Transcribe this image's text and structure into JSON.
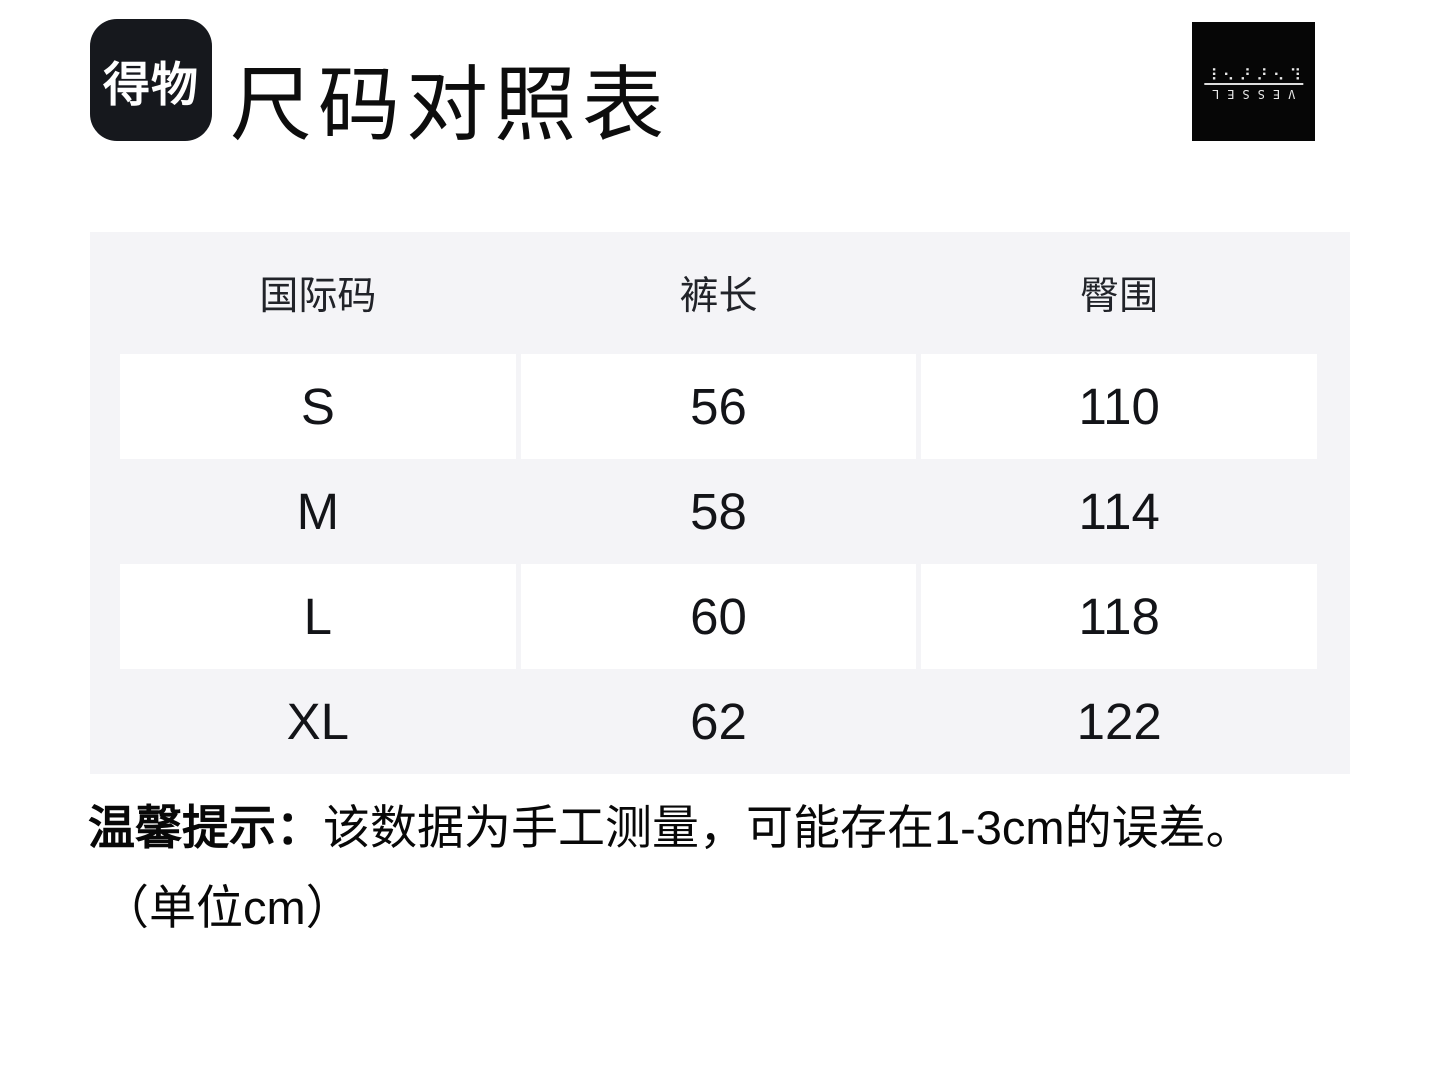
{
  "brand": {
    "logo_text": "得物"
  },
  "title": "尺码对照表",
  "vessel": {
    "word": "VESSEL",
    "braille": "⠧⠑⠎⠎⠑⠇"
  },
  "table": {
    "columns": [
      "国际码",
      "裤长",
      "臀围"
    ],
    "rows": [
      [
        "S",
        "56",
        "110"
      ],
      [
        "M",
        "58",
        "114"
      ],
      [
        "L",
        "60",
        "118"
      ],
      [
        "XL",
        "62",
        "122"
      ]
    ]
  },
  "note": {
    "label": "温馨提示：",
    "text": "该数据为手工测量，可能存在1-3cm的误差。",
    "unit_line": "（单位cm）"
  },
  "colors": {
    "panel_bg": "#f4f4f7",
    "row_alt_bg": "#ffffff",
    "dewu_logo_bg": "#16181d",
    "vessel_logo_bg": "#060606",
    "text_primary": "#0d0d0d"
  }
}
